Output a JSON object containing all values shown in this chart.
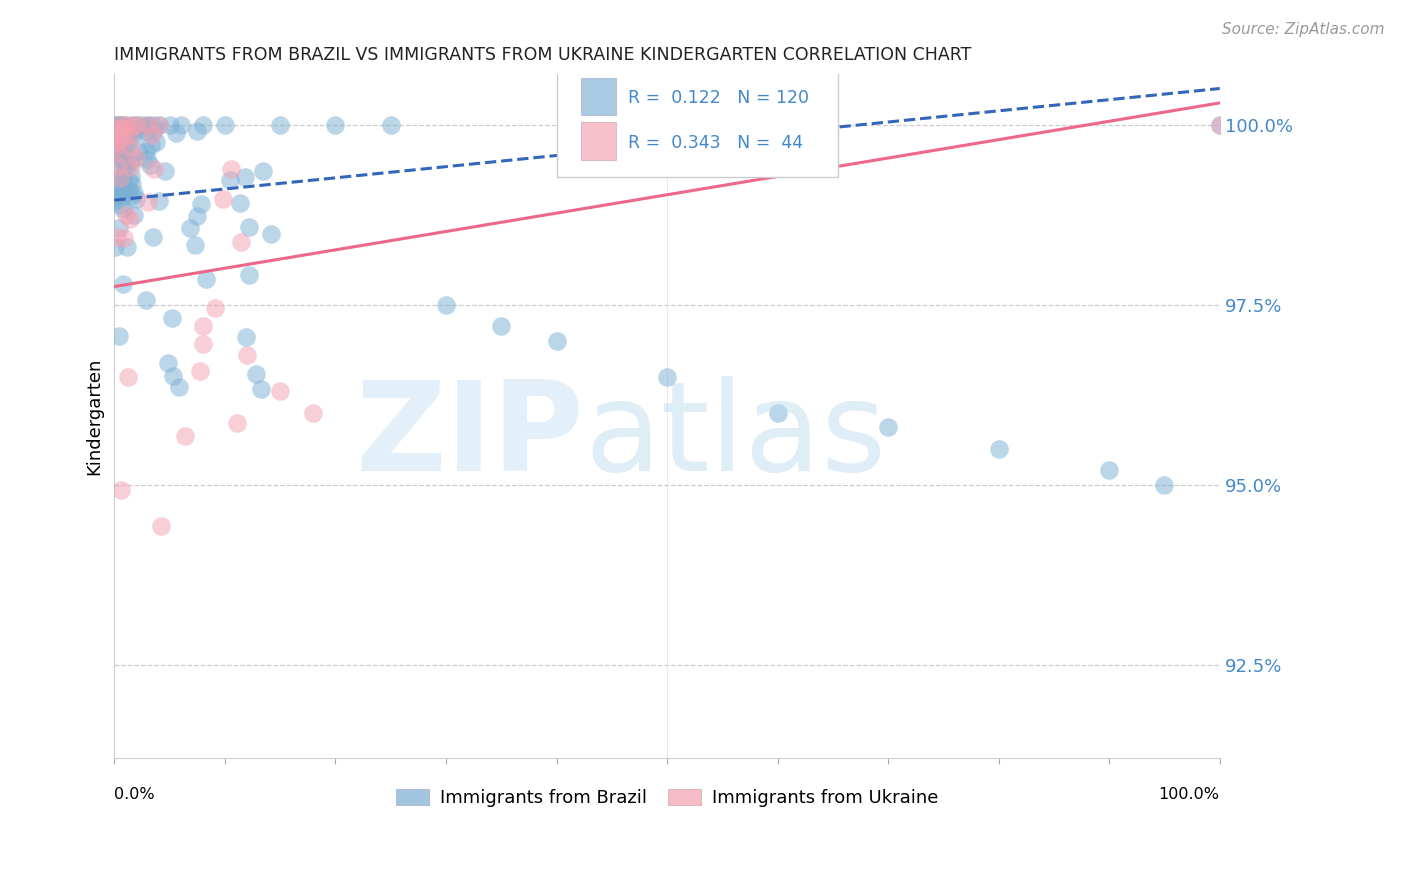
{
  "title": "IMMIGRANTS FROM BRAZIL VS IMMIGRANTS FROM UKRAINE KINDERGARTEN CORRELATION CHART",
  "source": "Source: ZipAtlas.com",
  "ylabel": "Kindergarten",
  "ytick_values": [
    1.0,
    0.975,
    0.95,
    0.925
  ],
  "xmin": 0.0,
  "xmax": 1.0,
  "ymin": 0.912,
  "ymax": 1.007,
  "legend_brazil_R": "0.122",
  "legend_brazil_N": "120",
  "legend_ukraine_R": "0.343",
  "legend_ukraine_N": "44",
  "brazil_color": "#7BAFD4",
  "ukraine_color": "#F4A0B0",
  "brazil_line_color": "#3366BB",
  "ukraine_line_color": "#EE6688",
  "brazil_line_intercept": 0.9895,
  "brazil_line_slope": 0.0155,
  "ukraine_line_intercept": 0.9775,
  "ukraine_line_slope": 0.0255,
  "grid_color": "#cccccc",
  "tick_color": "#4488CC",
  "legend_box_color": "#eeeeee"
}
